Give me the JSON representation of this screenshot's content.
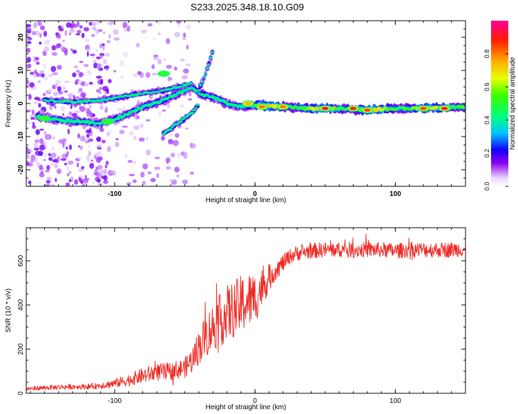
{
  "figure_title": "S233.2025.348.18.10.G09",
  "colors": {
    "snr_line": "#ee2a24",
    "axis": "#000000"
  },
  "chart_data": [
    {
      "type": "heatmap",
      "title": "S233.2025.348.18.10.G09",
      "xlabel": "Height of straight line (km)",
      "ylabel": "Frequency (Hz)",
      "xlim": [
        -163,
        150
      ],
      "ylim": [
        -25,
        25
      ],
      "x_ticks": [
        -100,
        0,
        100
      ],
      "x_tick_labels": [
        "-100",
        "0",
        "100"
      ],
      "y_ticks": [
        -20,
        -10,
        0,
        10,
        20
      ],
      "y_tick_labels": [
        "-20",
        "-10",
        "0",
        "10",
        "20"
      ],
      "colorbar": {
        "label": "Normalized spectral amplitude",
        "range": [
          0,
          1
        ],
        "ticks": [
          0.0,
          0.2,
          0.4,
          0.6,
          0.8
        ],
        "tick_labels": [
          "0.0",
          "0.2",
          "0.4",
          "0.6",
          "0.8"
        ]
      },
      "ridges": [
        {
          "name": "main",
          "points": [
            [
              -155,
              -4
            ],
            [
              -140,
              -5
            ],
            [
              -125,
              -5.5
            ],
            [
              -110,
              -6
            ],
            [
              -95,
              -4
            ],
            [
              -80,
              -1
            ],
            [
              -65,
              1
            ],
            [
              -55,
              3
            ],
            [
              -45,
              5
            ],
            [
              -40,
              3
            ],
            [
              -30,
              2
            ],
            [
              -20,
              0
            ],
            [
              -10,
              -1
            ],
            [
              0,
              -0.5
            ],
            [
              20,
              -1
            ],
            [
              40,
              -1.5
            ],
            [
              60,
              -1.5
            ],
            [
              80,
              -2
            ],
            [
              100,
              -1.5
            ],
            [
              120,
              -1.5
            ],
            [
              149,
              -1
            ]
          ]
        },
        {
          "name": "upper-branch",
          "points": [
            [
              -150,
              1
            ],
            [
              -130,
              0.5
            ],
            [
              -110,
              1
            ],
            [
              -95,
              2
            ],
            [
              -80,
              3
            ],
            [
              -65,
              4
            ],
            [
              -55,
              5
            ],
            [
              -45,
              6
            ]
          ]
        },
        {
          "name": "descending",
          "points": [
            [
              -65,
              -9
            ],
            [
              -55,
              -6
            ],
            [
              -45,
              -3
            ],
            [
              -40,
              0
            ]
          ]
        },
        {
          "name": "ascending",
          "points": [
            [
              -40,
              4
            ],
            [
              -35,
              9
            ],
            [
              -30,
              16
            ]
          ]
        }
      ],
      "hotspots": [
        {
          "x": 50,
          "y": -1.5,
          "amplitude": 0.95
        },
        {
          "x": 70,
          "y": -1.5,
          "amplitude": 0.9
        },
        {
          "x": 80,
          "y": -2,
          "amplitude": 0.85
        },
        {
          "x": 20,
          "y": -1,
          "amplitude": 0.8
        },
        {
          "x": 120,
          "y": -1.5,
          "amplitude": 0.85
        },
        {
          "x": 135,
          "y": -1.5,
          "amplitude": 0.9
        },
        {
          "x": -5,
          "y": 0,
          "amplitude": 0.75
        },
        {
          "x": 5,
          "y": -1,
          "amplitude": 0.8
        },
        {
          "x": -150,
          "y": -4.5,
          "amplitude": 0.5
        },
        {
          "x": -105,
          "y": -5.5,
          "amplitude": 0.5
        },
        {
          "x": -65,
          "y": 9,
          "amplitude": 0.5
        }
      ]
    },
    {
      "type": "line",
      "title": "",
      "xlabel": "Height of straight line (km)",
      "ylabel": "SNR (10 * v/v)",
      "xlim": [
        -163,
        150
      ],
      "ylim": [
        0,
        750
      ],
      "x_ticks": [
        -100,
        0,
        100
      ],
      "x_tick_labels": [
        "-100",
        "0",
        "100"
      ],
      "y_ticks": [
        0,
        200,
        400,
        600
      ],
      "y_tick_labels": [
        "0",
        "200",
        "400",
        "600"
      ],
      "series": [
        {
          "name": "SNR",
          "x": [
            -163,
            -150,
            -140,
            -130,
            -120,
            -110,
            -100,
            -90,
            -80,
            -70,
            -60,
            -50,
            -45,
            -40,
            -35,
            -30,
            -25,
            -20,
            -15,
            -10,
            -5,
            0,
            5,
            10,
            15,
            20,
            25,
            30,
            40,
            50,
            60,
            70,
            80,
            90,
            100,
            110,
            120,
            130,
            140,
            150
          ],
          "values": [
            20,
            25,
            28,
            30,
            30,
            35,
            45,
            60,
            80,
            95,
            100,
            115,
            150,
            210,
            260,
            300,
            330,
            360,
            380,
            400,
            420,
            430,
            480,
            520,
            560,
            590,
            620,
            635,
            645,
            650,
            650,
            650,
            650,
            650,
            645,
            650,
            650,
            650,
            650,
            655
          ],
          "noise": [
            10,
            10,
            12,
            12,
            12,
            15,
            20,
            28,
            35,
            40,
            40,
            45,
            60,
            80,
            100,
            110,
            120,
            130,
            130,
            135,
            130,
            120,
            90,
            60,
            45,
            40,
            35,
            35,
            35,
            35,
            35,
            35,
            35,
            35,
            35,
            35,
            35,
            35,
            35,
            35
          ]
        }
      ]
    }
  ]
}
